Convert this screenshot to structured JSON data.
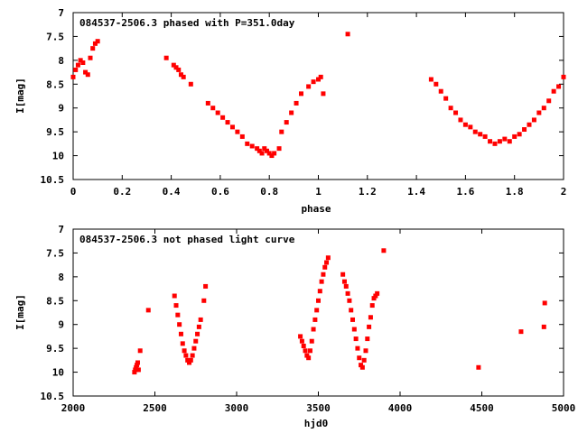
{
  "chart_data": [
    {
      "type": "scatter",
      "title": "084537-2506.3 phased with P=351.0day",
      "xlabel": "phase",
      "ylabel": "I[mag]",
      "xlim": [
        0,
        2
      ],
      "ylim": [
        7,
        10.5
      ],
      "y_inverted": true,
      "xticks": [
        0,
        0.2,
        0.4,
        0.6,
        0.8,
        1,
        1.2,
        1.4,
        1.6,
        1.8,
        2
      ],
      "xtick_labels": [
        "0",
        "0.2",
        "0.4",
        "0.6",
        "0.8",
        "1",
        "1.2",
        "1.4",
        "1.6",
        "1.8",
        "2"
      ],
      "yticks": [
        7,
        7.5,
        8,
        8.5,
        9,
        9.5,
        10,
        10.5
      ],
      "ytick_labels": [
        "7",
        "7.5",
        "8",
        "8.5",
        "9",
        "9.5",
        "10",
        "10.5"
      ],
      "grid": false,
      "marker_color": "#ff0000",
      "series": [
        {
          "x": [
            0.0,
            0.01,
            0.02,
            0.03,
            0.04,
            0.05,
            0.06,
            0.07,
            0.08,
            0.09,
            0.1,
            0.38,
            0.41,
            0.42,
            0.43,
            0.44,
            0.45,
            0.48,
            0.55,
            0.57,
            0.59,
            0.61,
            0.63,
            0.65,
            0.67,
            0.69,
            0.71,
            0.73,
            0.75,
            0.76,
            0.77,
            0.78,
            0.79,
            0.8,
            0.81,
            0.82,
            0.84,
            0.85,
            0.87,
            0.89,
            0.91,
            0.93,
            0.96,
            0.98,
            1.0,
            1.01,
            1.02,
            1.12,
            1.46,
            1.48,
            1.5,
            1.52,
            1.54,
            1.56,
            1.58,
            1.6,
            1.62,
            1.64,
            1.66,
            1.68,
            1.7,
            1.72,
            1.74,
            1.76,
            1.78,
            1.8,
            1.82,
            1.84,
            1.86,
            1.88,
            1.9,
            1.92,
            1.94,
            1.96,
            1.98,
            2.0
          ],
          "y": [
            8.35,
            8.2,
            8.1,
            8.0,
            8.05,
            8.25,
            8.3,
            7.95,
            7.75,
            7.65,
            7.6,
            7.95,
            8.1,
            8.15,
            8.2,
            8.3,
            8.35,
            8.5,
            8.9,
            9.0,
            9.1,
            9.2,
            9.3,
            9.4,
            9.5,
            9.6,
            9.75,
            9.8,
            9.85,
            9.9,
            9.95,
            9.85,
            9.9,
            9.95,
            10.0,
            9.95,
            9.85,
            9.5,
            9.3,
            9.1,
            8.9,
            8.7,
            8.55,
            8.45,
            8.4,
            8.35,
            8.7,
            7.45,
            8.4,
            8.5,
            8.65,
            8.8,
            9.0,
            9.1,
            9.25,
            9.35,
            9.4,
            9.5,
            9.55,
            9.6,
            9.7,
            9.75,
            9.7,
            9.65,
            9.7,
            9.6,
            9.55,
            9.45,
            9.35,
            9.25,
            9.1,
            9.0,
            8.85,
            8.65,
            8.55,
            8.35
          ]
        }
      ]
    },
    {
      "type": "scatter",
      "title": "084537-2506.3 not phased light curve",
      "xlabel": "hjd0",
      "ylabel": "I[mag]",
      "xlim": [
        2000,
        5000
      ],
      "ylim": [
        7,
        10.5
      ],
      "y_inverted": true,
      "xticks": [
        2000,
        2500,
        3000,
        3500,
        4000,
        4500,
        5000
      ],
      "xtick_labels": [
        "2000",
        "2500",
        "3000",
        "3500",
        "4000",
        "4500",
        "5000"
      ],
      "yticks": [
        7,
        7.5,
        8,
        8.5,
        9,
        9.5,
        10,
        10.5
      ],
      "ytick_labels": [
        "7",
        "7.5",
        "8",
        "8.5",
        "9",
        "9.5",
        "10",
        "10.5"
      ],
      "grid": false,
      "marker_color": "#ff0000",
      "series": [
        {
          "x": [
            2375,
            2380,
            2385,
            2390,
            2395,
            2400,
            2410,
            2460,
            2620,
            2630,
            2640,
            2650,
            2660,
            2670,
            2680,
            2690,
            2700,
            2710,
            2720,
            2730,
            2740,
            2750,
            2760,
            2770,
            2780,
            2800,
            2810,
            3390,
            3400,
            3410,
            3420,
            3430,
            3440,
            3450,
            3460,
            3470,
            3480,
            3490,
            3500,
            3510,
            3520,
            3530,
            3540,
            3550,
            3560,
            3650,
            3660,
            3670,
            3680,
            3690,
            3700,
            3710,
            3720,
            3730,
            3740,
            3750,
            3760,
            3770,
            3780,
            3790,
            3800,
            3810,
            3820,
            3830,
            3840,
            3850,
            3860,
            3900,
            4480,
            4740,
            4880,
            4885
          ],
          "y": [
            10.0,
            9.95,
            9.9,
            9.85,
            9.8,
            9.95,
            9.55,
            8.7,
            8.4,
            8.6,
            8.8,
            9.0,
            9.2,
            9.4,
            9.55,
            9.65,
            9.75,
            9.8,
            9.75,
            9.65,
            9.5,
            9.35,
            9.2,
            9.05,
            8.9,
            8.5,
            8.2,
            9.25,
            9.35,
            9.45,
            9.55,
            9.65,
            9.7,
            9.55,
            9.35,
            9.1,
            8.9,
            8.7,
            8.5,
            8.3,
            8.1,
            7.95,
            7.8,
            7.7,
            7.6,
            7.95,
            8.1,
            8.2,
            8.35,
            8.5,
            8.7,
            8.9,
            9.1,
            9.3,
            9.5,
            9.7,
            9.85,
            9.9,
            9.75,
            9.55,
            9.3,
            9.05,
            8.85,
            8.6,
            8.45,
            8.4,
            8.35,
            7.45,
            9.9,
            9.15,
            9.05,
            8.55
          ]
        }
      ]
    }
  ]
}
